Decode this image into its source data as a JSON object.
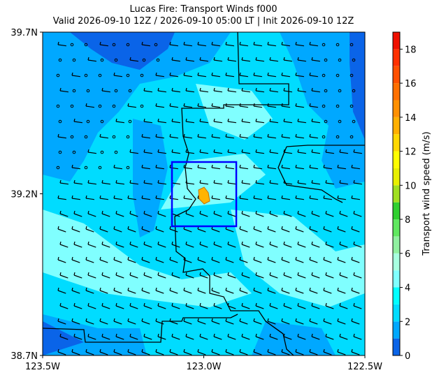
{
  "chart_data": {
    "type": "contourf-map",
    "title": "Lucas Fire: Transport Winds f000",
    "subtitle": "Valid 2026-09-10 12Z / 2026-09-10 05:00 LT | Init 2026-09-10 12Z",
    "xlim": [
      -123.5,
      -122.5
    ],
    "xticks": [
      {
        "value": -123.5,
        "label": "123.5W"
      },
      {
        "value": -123.0,
        "label": "123.0W"
      },
      {
        "value": -122.5,
        "label": "122.5W"
      }
    ],
    "ylim": [
      38.7,
      39.7
    ],
    "yticks": [
      {
        "value": 38.7,
        "label": "38.7N"
      },
      {
        "value": 39.2,
        "label": "39.2N"
      },
      {
        "value": 39.7,
        "label": "39.7N"
      }
    ],
    "colorbar": {
      "label": "Transport wind speed (m/s)",
      "lim": [
        0,
        19
      ],
      "ticks": [
        0,
        2,
        4,
        6,
        8,
        10,
        12,
        14,
        16,
        18
      ],
      "levels": [
        0,
        1,
        2,
        3,
        4,
        5,
        6,
        7,
        8,
        9,
        10,
        11,
        12,
        13,
        14,
        15,
        16,
        17,
        18,
        19
      ],
      "colors": [
        "#0a64e8",
        "#00a8ff",
        "#00dcff",
        "#00ffff",
        "#80ffff",
        "#a8ffe0",
        "#90f0a0",
        "#60e860",
        "#30d030",
        "#a0e020",
        "#e8f000",
        "#ffff00",
        "#ffd800",
        "#ffb000",
        "#ff9000",
        "#ff7000",
        "#ff5000",
        "#ff3000",
        "#f01000"
      ]
    }
  }
}
